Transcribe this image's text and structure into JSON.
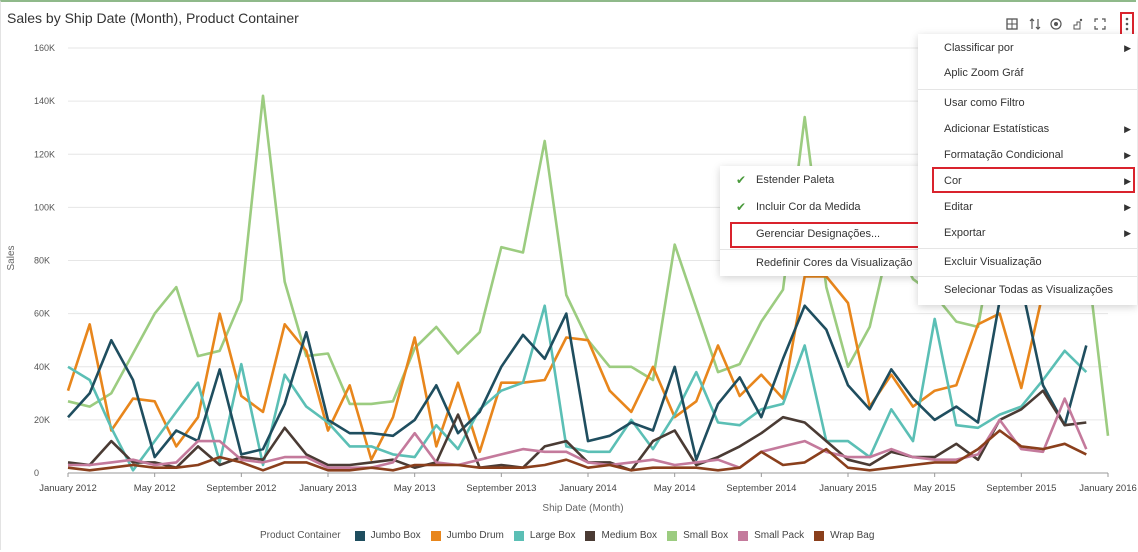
{
  "title": "Sales by Ship Date (Month), Product Container",
  "toolbar": {
    "icons": [
      "grid-layout-icon",
      "sort-icon",
      "target-icon",
      "pointer-icon",
      "fullscreen-icon",
      "more-options-icon"
    ]
  },
  "menu": {
    "items": [
      {
        "label": "Classificar por",
        "has_submenu": true
      },
      {
        "label": "Aplic Zoom Gráf",
        "has_submenu": false
      },
      {
        "label": "Usar como Filtro",
        "has_submenu": false
      },
      {
        "label": "Adicionar Estatísticas",
        "has_submenu": true
      },
      {
        "label": "Formatação Condicional",
        "has_submenu": true
      },
      {
        "label": "Cor",
        "has_submenu": true,
        "highlighted": true
      },
      {
        "label": "Editar",
        "has_submenu": true
      },
      {
        "label": "Exportar",
        "has_submenu": true
      },
      {
        "label": "Excluir Visualização",
        "has_submenu": false
      },
      {
        "label": "Selecionar Todas as Visualizações",
        "has_submenu": false
      }
    ]
  },
  "submenu": {
    "items": [
      {
        "label": "Estender Paleta",
        "checked": true
      },
      {
        "label": "Incluir Cor da Medida",
        "checked": true
      },
      {
        "label": "Gerenciar Designações...",
        "checked": false,
        "highlighted": true
      },
      {
        "label": "Redefinir Cores da Visualização",
        "checked": false
      }
    ]
  },
  "legend": {
    "title": "Product Container"
  },
  "chart_data": {
    "type": "line",
    "xlabel": "Ship Date (Month)",
    "ylabel": "Sales",
    "ylim": [
      0,
      160000
    ],
    "yticks": [
      "0",
      "20K",
      "40K",
      "60K",
      "80K",
      "100K",
      "120K",
      "140K",
      "160K"
    ],
    "xticks": [
      {
        "label": "January 2012",
        "index": 0
      },
      {
        "label": "May 2012",
        "index": 4
      },
      {
        "label": "September 2012",
        "index": 8
      },
      {
        "label": "January 2013",
        "index": 12
      },
      {
        "label": "May 2013",
        "index": 16
      },
      {
        "label": "September 2013",
        "index": 20
      },
      {
        "label": "January 2014",
        "index": 24
      },
      {
        "label": "May 2014",
        "index": 28
      },
      {
        "label": "September 2014",
        "index": 32
      },
      {
        "label": "January 2015",
        "index": 36
      },
      {
        "label": "May 2015",
        "index": 40
      },
      {
        "label": "September 2015",
        "index": 44
      },
      {
        "label": "January 2016",
        "index": 48
      }
    ],
    "grid": true,
    "legend_position": "bottom",
    "series": [
      {
        "name": "Jumbo Box",
        "color": "#1f4e5f",
        "values": [
          21000,
          30000,
          50000,
          35000,
          6000,
          16000,
          12000,
          39000,
          7000,
          9000,
          26000,
          53000,
          20000,
          15000,
          15000,
          14000,
          20000,
          33000,
          15000,
          23000,
          40000,
          52000,
          43000,
          60000,
          12000,
          14000,
          19000,
          16000,
          40000,
          5000,
          26000,
          36000,
          21000,
          43000,
          63000,
          54000,
          33000,
          24000,
          39000,
          28000,
          20000,
          25000,
          19000,
          65000,
          71000,
          33000,
          18000,
          48000,
          null
        ]
      },
      {
        "name": "Jumbo Drum",
        "color": "#e8861c",
        "values": [
          31000,
          56000,
          16000,
          28000,
          27000,
          10000,
          21000,
          60000,
          29000,
          23000,
          56000,
          46000,
          16000,
          33000,
          5000,
          21000,
          51000,
          10000,
          34000,
          8000,
          34000,
          34000,
          35000,
          51000,
          50000,
          31000,
          23000,
          40000,
          21000,
          27000,
          48000,
          29000,
          37000,
          28000,
          74000,
          74000,
          64000,
          25000,
          37000,
          25000,
          31000,
          33000,
          56000,
          60000,
          32000,
          68000,
          null,
          null,
          5000
        ]
      },
      {
        "name": "Large Box",
        "color": "#5bbfb5",
        "values": [
          40000,
          35000,
          17000,
          1000,
          12000,
          23000,
          34000,
          4000,
          41000,
          3000,
          37000,
          25000,
          19000,
          10000,
          10000,
          7000,
          6000,
          18000,
          9000,
          24000,
          31000,
          34000,
          63000,
          10000,
          8000,
          8000,
          20000,
          9000,
          22000,
          38000,
          19000,
          18000,
          24000,
          26000,
          48000,
          12000,
          12000,
          6000,
          24000,
          12000,
          58000,
          18000,
          17000,
          22000,
          25000,
          35000,
          46000,
          38000,
          null
        ]
      },
      {
        "name": "Medium Box",
        "color": "#4a3b34",
        "values": [
          4000,
          3000,
          12000,
          4000,
          4000,
          2000,
          10000,
          3000,
          6000,
          5000,
          17000,
          7000,
          3000,
          3000,
          4000,
          5000,
          2000,
          4000,
          22000,
          2000,
          3000,
          2000,
          10000,
          12000,
          4000,
          4000,
          1000,
          12000,
          16000,
          3000,
          6000,
          10000,
          15000,
          21000,
          19000,
          12000,
          5000,
          3000,
          8000,
          6000,
          6000,
          11000,
          5000,
          20000,
          24000,
          31000,
          18000,
          19000,
          null
        ]
      },
      {
        "name": "Small Box",
        "color": "#9ccc80",
        "values": [
          27000,
          25000,
          30000,
          45000,
          60000,
          70000,
          44000,
          46000,
          65000,
          142000,
          72000,
          44000,
          45000,
          26000,
          26000,
          27000,
          47000,
          55000,
          45000,
          53000,
          85000,
          83000,
          125000,
          67000,
          50000,
          40000,
          40000,
          35000,
          86000,
          62000,
          38000,
          41000,
          57000,
          69000,
          134000,
          70000,
          40000,
          55000,
          90000,
          73000,
          67000,
          57000,
          55000,
          100000,
          128000,
          95000,
          100000,
          83000,
          14000
        ]
      },
      {
        "name": "Small Pack",
        "color": "#c47a9c",
        "values": [
          3000,
          3000,
          4000,
          5000,
          3000,
          4000,
          12000,
          12000,
          5000,
          4000,
          6000,
          6000,
          2000,
          2000,
          2000,
          4000,
          15000,
          4000,
          3000,
          5000,
          7000,
          9000,
          8000,
          8000,
          4000,
          3000,
          4000,
          5000,
          3000,
          4000,
          5000,
          2000,
          8000,
          10000,
          12000,
          8000,
          6000,
          6000,
          9000,
          6000,
          5000,
          5000,
          7000,
          20000,
          9000,
          8000,
          28000,
          9000,
          null
        ]
      },
      {
        "name": "Wrap Bag",
        "color": "#8a3f1c",
        "values": [
          2000,
          1000,
          2000,
          3000,
          2000,
          2000,
          3000,
          6000,
          4000,
          1000,
          4000,
          4000,
          1000,
          1000,
          2000,
          1000,
          3000,
          3000,
          3000,
          2000,
          2000,
          2000,
          3000,
          5000,
          2000,
          3000,
          1000,
          2000,
          2000,
          2000,
          1000,
          2000,
          8000,
          3000,
          4000,
          9000,
          2000,
          1000,
          2000,
          3000,
          4000,
          4000,
          9000,
          16000,
          10000,
          9000,
          11000,
          7000,
          null
        ]
      }
    ]
  }
}
